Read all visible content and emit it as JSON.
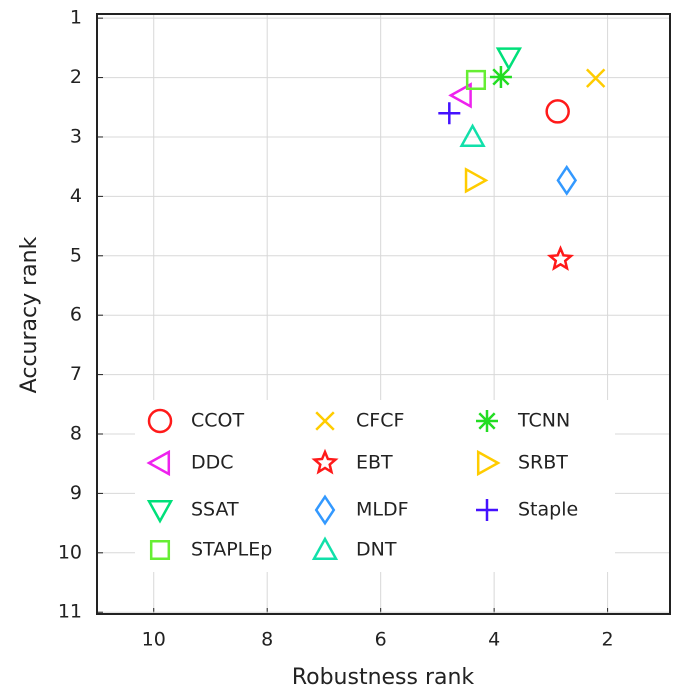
{
  "chart_data": {
    "type": "scatter",
    "x_label": "Robustness rank",
    "y_label": "Accuracy rank",
    "xlim": [
      11,
      0.9
    ],
    "ylim": [
      0.93,
      11.03
    ],
    "xticks": [
      10,
      8,
      6,
      4,
      2
    ],
    "yticks": [
      1,
      2,
      3,
      4,
      5,
      6,
      7,
      8,
      9,
      10,
      11
    ],
    "grid": true,
    "legend": "lower left",
    "series": [
      {
        "name": "CCOT",
        "color": "#ff1a1a",
        "marker": "circle",
        "x": [
          2.88
        ],
        "values": [
          2.57
        ]
      },
      {
        "name": "CFCF",
        "color": "#ffcc00",
        "marker": "x",
        "x": [
          2.21
        ],
        "values": [
          2.01
        ]
      },
      {
        "name": "TCNN",
        "color": "#22dd22",
        "marker": "asterisk",
        "x": [
          3.88
        ],
        "values": [
          1.99
        ]
      },
      {
        "name": "DDC",
        "color": "#ee22ee",
        "marker": "triangle-left",
        "x": [
          4.57
        ],
        "values": [
          2.3
        ]
      },
      {
        "name": "EBT",
        "color": "#ff1a1a",
        "marker": "star",
        "x": [
          2.83
        ],
        "values": [
          5.06
        ]
      },
      {
        "name": "SRBT",
        "color": "#ffcc00",
        "marker": "triangle-right",
        "x": [
          4.34
        ],
        "values": [
          3.73
        ]
      },
      {
        "name": "SSAT",
        "color": "#00e07a",
        "marker": "triangle-down",
        "x": [
          3.74
        ],
        "values": [
          1.66
        ]
      },
      {
        "name": "MLDF",
        "color": "#3399ff",
        "marker": "diamond",
        "x": [
          2.72
        ],
        "values": [
          3.73
        ]
      },
      {
        "name": "Staple",
        "color": "#4411ff",
        "marker": "plus",
        "x": [
          4.79
        ],
        "values": [
          2.6
        ]
      },
      {
        "name": "STAPLEp",
        "color": "#66ee33",
        "marker": "square",
        "x": [
          4.32
        ],
        "values": [
          2.04
        ]
      },
      {
        "name": "DNT",
        "color": "#11e0aa",
        "marker": "triangle-up",
        "x": [
          4.38
        ],
        "values": [
          3.0
        ]
      }
    ]
  }
}
